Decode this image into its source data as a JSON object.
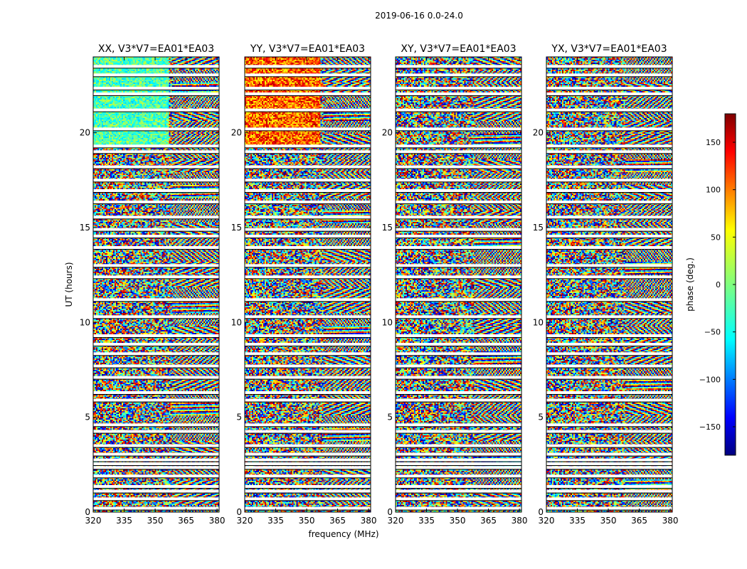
{
  "figure_title": "2019-06-16 0.0-24.0",
  "chart_data": {
    "type": "heatmap",
    "title": "2019-06-16 0.0-24.0",
    "xlabel": "frequency (MHz)",
    "ylabel": "UT (hours)",
    "xlim": [
      320,
      381
    ],
    "ylim": [
      0,
      24
    ],
    "x_ticks": [
      320,
      335,
      350,
      365,
      380
    ],
    "y_ticks": [
      0,
      5,
      10,
      15,
      20
    ],
    "panels": [
      {
        "name": "XX",
        "title": "XX, V3*V7=EA01*EA03"
      },
      {
        "name": "YY",
        "title": "YY, V3*V7=EA01*EA03"
      },
      {
        "name": "XY",
        "title": "XY, V3*V7=EA01*EA03"
      },
      {
        "name": "YX",
        "title": "YX, V3*V7=EA01*EA03"
      }
    ],
    "flagged_ut_hours": [
      0.2,
      0.7,
      1.1,
      1.35,
      1.9,
      2.35,
      2.55,
      2.75,
      3.05,
      3.5,
      4.25,
      4.6,
      5.9,
      6.3,
      7.1,
      7.7,
      8.35,
      8.85,
      9.3,
      10.3,
      11.2,
      12.4,
      13.0,
      13.95,
      14.55,
      14.9,
      15.55,
      16.35,
      16.95,
      17.5,
      18.2,
      19.0,
      19.3,
      20.2,
      21.2,
      22.05,
      22.35,
      23.05,
      23.5
    ],
    "colorbar": {
      "label": "phase (deg.)",
      "range": [
        -180,
        180
      ],
      "ticks": [
        -150,
        -100,
        -50,
        0,
        50,
        100,
        150
      ],
      "colormap": "jet",
      "colors": [
        "#00007f",
        "#0000ff",
        "#007fff",
        "#00ffff",
        "#7fff7f",
        "#ffff00",
        "#ff7f00",
        "#ff0000",
        "#7f0000"
      ]
    }
  }
}
